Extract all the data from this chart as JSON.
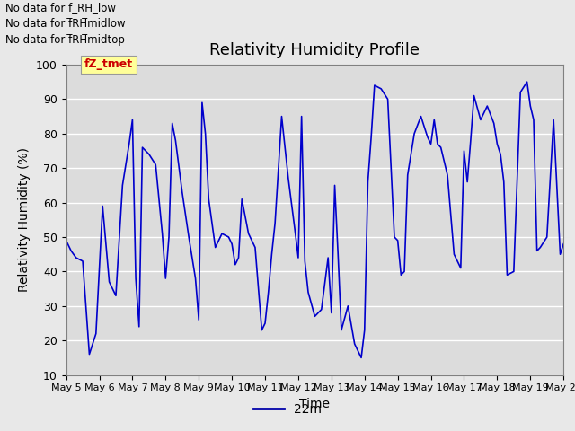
{
  "title": "Relativity Humidity Profile",
  "xlabel": "Time",
  "ylabel": "Relativity Humidity (%)",
  "ylim": [
    10,
    100
  ],
  "yticks": [
    10,
    20,
    30,
    40,
    50,
    60,
    70,
    80,
    90,
    100
  ],
  "xtick_labels": [
    "May 5",
    "May 6",
    "May 7",
    "May 8",
    "May 9",
    "May 10",
    "May 11",
    "May 12",
    "May 13",
    "May 14",
    "May 15",
    "May 16",
    "May 17",
    "May 18",
    "May 19",
    "May 20"
  ],
  "no_data_labels": [
    "No data for f_RH_low",
    "No data for f̅RH̅midlow",
    "No data for f̅RH̅midtop"
  ],
  "legend_label": "22m",
  "line_color": "#0000CC",
  "legend_line_color": "#0000AA",
  "fig_bg_color": "#E8E8E8",
  "plot_bg_color": "#DCDCDC",
  "annotation_box_color": "#FFFF99",
  "annotation_text": "fZ_tmet",
  "annotation_text_color": "#CC0000",
  "x_values": [
    0,
    0.15,
    0.3,
    0.5,
    0.7,
    0.9,
    1.1,
    1.3,
    1.5,
    1.7,
    1.9,
    2.0,
    2.1,
    2.2,
    2.3,
    2.5,
    2.7,
    2.9,
    3.0,
    3.1,
    3.2,
    3.3,
    3.5,
    3.7,
    3.9,
    4.0,
    4.1,
    4.2,
    4.3,
    4.5,
    4.7,
    4.9,
    5.0,
    5.1,
    5.2,
    5.3,
    5.5,
    5.7,
    5.9,
    6.0,
    6.1,
    6.2,
    6.3,
    6.5,
    6.7,
    6.9,
    7.0,
    7.1,
    7.2,
    7.3,
    7.5,
    7.7,
    7.9,
    8.0,
    8.1,
    8.2,
    8.3,
    8.5,
    8.7,
    8.9,
    9.0,
    9.1,
    9.2,
    9.3,
    9.5,
    9.7,
    9.9,
    10.0,
    10.1,
    10.2,
    10.3,
    10.5,
    10.7,
    10.9,
    11.0,
    11.1,
    11.2,
    11.3,
    11.5,
    11.7,
    11.9,
    12.0,
    12.1,
    12.2,
    12.3,
    12.5,
    12.7,
    12.9,
    13.0,
    13.1,
    13.2,
    13.3,
    13.5,
    13.7,
    13.9,
    14.0,
    14.1,
    14.2,
    14.3,
    14.5,
    14.7,
    14.9,
    15.0
  ],
  "y_values": [
    49,
    46,
    44,
    43,
    16,
    22,
    59,
    37,
    33,
    65,
    77,
    84,
    38,
    24,
    76,
    74,
    71,
    51,
    38,
    50,
    83,
    78,
    63,
    50,
    38,
    26,
    89,
    80,
    61,
    47,
    51,
    50,
    48,
    42,
    44,
    61,
    51,
    47,
    23,
    25,
    34,
    45,
    54,
    85,
    67,
    52,
    44,
    85,
    43,
    34,
    27,
    29,
    44,
    28,
    65,
    45,
    23,
    30,
    19,
    15,
    23,
    66,
    79,
    94,
    93,
    90,
    50,
    49,
    39,
    40,
    68,
    80,
    85,
    79,
    77,
    84,
    77,
    76,
    68,
    45,
    41,
    75,
    66,
    78,
    91,
    84,
    88,
    83,
    77,
    74,
    66,
    39,
    40,
    92,
    95,
    88,
    84,
    46,
    47,
    50,
    84,
    45,
    48
  ],
  "title_fontsize": 13,
  "axis_label_fontsize": 10,
  "tick_fontsize": 9
}
